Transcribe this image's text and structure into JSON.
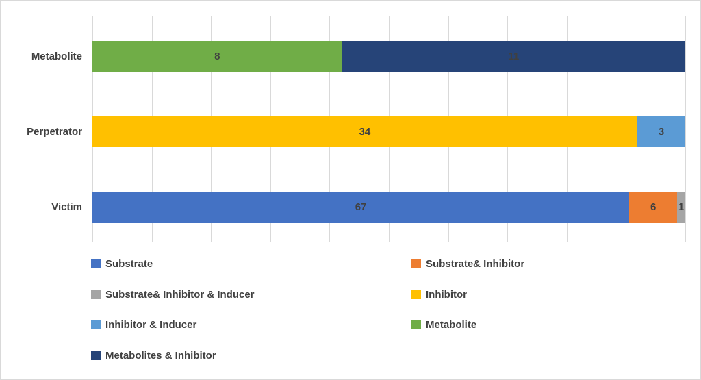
{
  "chart": {
    "background": "#FFFFFF",
    "border_color": "#D9D9D9",
    "gridline_color": "#D9D9D9",
    "text_color": "#404040"
  },
  "chart_data": {
    "type": "bar",
    "orientation": "horizontal",
    "stacking": "percent",
    "title": "",
    "xlabel": "",
    "ylabel": "",
    "categories": [
      "Metabolite",
      "Perpetrator",
      "Victim"
    ],
    "series": [
      {
        "name": "Substrate",
        "color": "#4472C4",
        "values": [
          0,
          0,
          67
        ]
      },
      {
        "name": "Substrate& Inhibitor",
        "color": "#ED7D31",
        "values": [
          0,
          0,
          6
        ]
      },
      {
        "name": "Substrate& Inhibitor & Inducer",
        "color": "#A5A5A5",
        "values": [
          0,
          0,
          1
        ]
      },
      {
        "name": "Inhibitor",
        "color": "#FFC000",
        "values": [
          0,
          34,
          0
        ]
      },
      {
        "name": "Inhibitor & Inducer",
        "color": "#5B9BD5",
        "values": [
          0,
          3,
          0
        ]
      },
      {
        "name": "Metabolite",
        "color": "#70AD47",
        "values": [
          8,
          0,
          0
        ]
      },
      {
        "name": "Metabolites & Inhibitor",
        "color": "#264478",
        "values": [
          11,
          0,
          0
        ]
      }
    ],
    "data_labels": [
      {
        "category": "Metabolite",
        "labels": [
          8,
          11
        ]
      },
      {
        "category": "Perpetrator",
        "labels": [
          34,
          3
        ]
      },
      {
        "category": "Victim",
        "labels": [
          67,
          6,
          1
        ]
      }
    ],
    "axis": {
      "x_min_percent": 0,
      "x_max_percent": 100,
      "gridline_count": 11,
      "tick_labels_visible": false
    },
    "grid": true,
    "legend_position": "bottom"
  },
  "legend": {
    "items": [
      {
        "label": "Substrate",
        "color": "#4472C4",
        "col": 0,
        "row": 0
      },
      {
        "label": "Substrate& Inhibitor",
        "color": "#ED7D31",
        "col": 1,
        "row": 0
      },
      {
        "label": "Substrate& Inhibitor & Inducer",
        "color": "#A5A5A5",
        "col": 0,
        "row": 1
      },
      {
        "label": "Inhibitor",
        "color": "#FFC000",
        "col": 1,
        "row": 1
      },
      {
        "label": "Inhibitor & Inducer",
        "color": "#5B9BD5",
        "col": 0,
        "row": 2
      },
      {
        "label": "Metabolite",
        "color": "#70AD47",
        "col": 1,
        "row": 2
      },
      {
        "label": "Metabolites & Inhibitor",
        "color": "#264478",
        "col": 0,
        "row": 3
      }
    ]
  }
}
